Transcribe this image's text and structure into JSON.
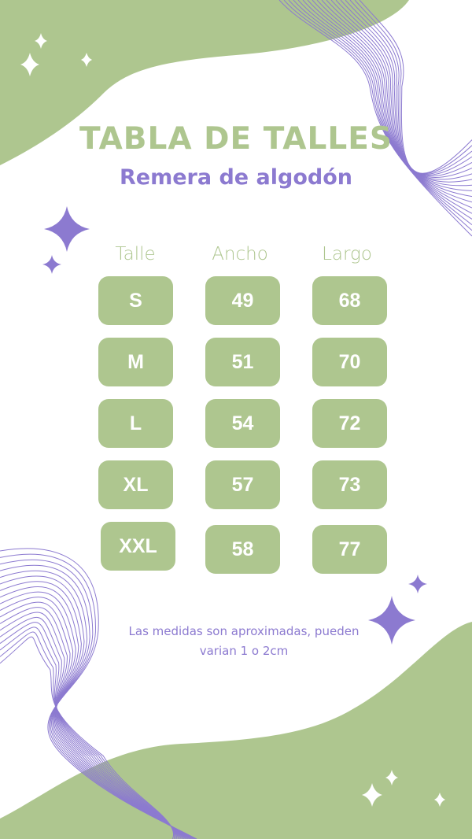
{
  "title": "TABLA DE TALLES",
  "subtitle": "Remera de algodón",
  "columns": [
    "Talle",
    "Ancho",
    "Largo"
  ],
  "rows": [
    [
      "S",
      "49",
      "68"
    ],
    [
      "M",
      "51",
      "70"
    ],
    [
      "L",
      "54",
      "72"
    ],
    [
      "XL",
      "57",
      "73"
    ],
    [
      "XXL",
      "58",
      "77"
    ]
  ],
  "note": "Las medidas son aproximadas, pueden varian 1 o 2cm",
  "colors": {
    "green": "#aec68f",
    "purple": "#8c7ad0",
    "background": "#ffffff"
  },
  "decorations": [
    "sparkle-icon",
    "wave-lines"
  ]
}
